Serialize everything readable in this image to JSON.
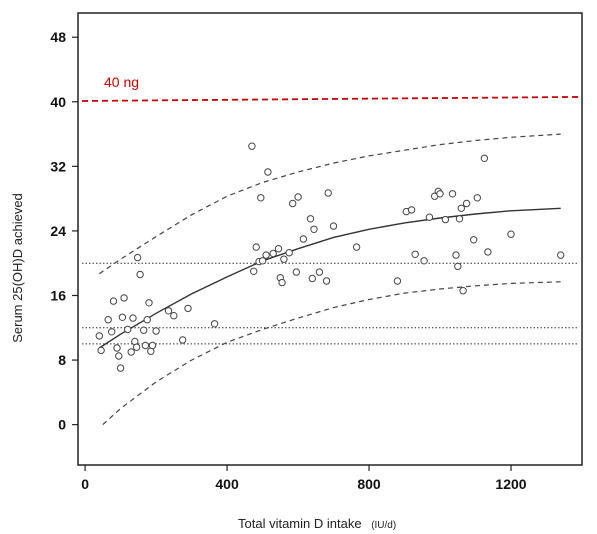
{
  "chart_data": {
    "type": "scatter",
    "title": "",
    "xlabel": "Total vitamin D intake",
    "xlabel_unit": "(IU/d)",
    "ylabel": "Serum 25(OH)D achieved",
    "xlim": [
      -20,
      1400
    ],
    "ylim": [
      -5,
      51
    ],
    "x_ticks": [
      0,
      400,
      800,
      1200
    ],
    "y_ticks": [
      0,
      8,
      16,
      24,
      32,
      40,
      48
    ],
    "grid": false,
    "reference_lines": [
      {
        "name": "40 ng",
        "y": 40.1,
        "y_end": 40.6,
        "color": "#cc0000",
        "style": "dashed"
      },
      {
        "y": 20,
        "color": "#333333",
        "style": "dotted"
      },
      {
        "y": 12,
        "color": "#333333",
        "style": "dotted"
      },
      {
        "y": 10,
        "color": "#333333",
        "style": "dotted"
      }
    ],
    "fit_curve": {
      "style": "solid",
      "x": [
        40,
        100,
        200,
        300,
        400,
        500,
        600,
        700,
        800,
        900,
        1000,
        1100,
        1200,
        1340
      ],
      "y": [
        9.5,
        11.2,
        13.8,
        16.2,
        18.3,
        20.3,
        21.8,
        23.2,
        24.2,
        25.0,
        25.6,
        26.1,
        26.5,
        26.8
      ]
    },
    "band_upper": {
      "style": "dashed",
      "x": [
        40,
        100,
        200,
        300,
        400,
        500,
        600,
        700,
        800,
        900,
        1000,
        1100,
        1200,
        1340
      ],
      "y": [
        18.7,
        20.5,
        23.3,
        26.0,
        28.3,
        30.0,
        31.3,
        32.4,
        33.3,
        34.0,
        34.7,
        35.2,
        35.6,
        36.0
      ]
    },
    "band_lower": {
      "style": "dashed",
      "x": [
        50,
        100,
        200,
        300,
        400,
        500,
        600,
        700,
        800,
        900,
        1000,
        1100,
        1200,
        1340
      ],
      "y": [
        0,
        2.0,
        5.3,
        8.0,
        10.2,
        11.8,
        13.2,
        14.5,
        15.5,
        16.3,
        16.8,
        17.2,
        17.5,
        17.7
      ]
    },
    "points": [
      {
        "x": 40,
        "y": 11
      },
      {
        "x": 45,
        "y": 9.2
      },
      {
        "x": 65,
        "y": 13
      },
      {
        "x": 75,
        "y": 11.5
      },
      {
        "x": 80,
        "y": 15.3
      },
      {
        "x": 90,
        "y": 9.5
      },
      {
        "x": 95,
        "y": 8.5
      },
      {
        "x": 100,
        "y": 7
      },
      {
        "x": 105,
        "y": 13.3
      },
      {
        "x": 110,
        "y": 15.7
      },
      {
        "x": 120,
        "y": 11.8
      },
      {
        "x": 130,
        "y": 9
      },
      {
        "x": 135,
        "y": 13.2
      },
      {
        "x": 140,
        "y": 10.3
      },
      {
        "x": 145,
        "y": 9.6
      },
      {
        "x": 148,
        "y": 20.7
      },
      {
        "x": 155,
        "y": 18.6
      },
      {
        "x": 165,
        "y": 11.7
      },
      {
        "x": 170,
        "y": 9.8
      },
      {
        "x": 175,
        "y": 13
      },
      {
        "x": 180,
        "y": 15.1
      },
      {
        "x": 185,
        "y": 9.1
      },
      {
        "x": 190,
        "y": 9.8
      },
      {
        "x": 200,
        "y": 11.6
      },
      {
        "x": 235,
        "y": 14.1
      },
      {
        "x": 250,
        "y": 13.5
      },
      {
        "x": 275,
        "y": 10.5
      },
      {
        "x": 290,
        "y": 14.4
      },
      {
        "x": 365,
        "y": 12.5
      },
      {
        "x": 470,
        "y": 34.5
      },
      {
        "x": 475,
        "y": 19
      },
      {
        "x": 482,
        "y": 22
      },
      {
        "x": 490,
        "y": 20.2
      },
      {
        "x": 495,
        "y": 28.1
      },
      {
        "x": 500,
        "y": 20.3
      },
      {
        "x": 510,
        "y": 21
      },
      {
        "x": 515,
        "y": 31.3
      },
      {
        "x": 530,
        "y": 21.2
      },
      {
        "x": 545,
        "y": 21.8
      },
      {
        "x": 550,
        "y": 18.2
      },
      {
        "x": 555,
        "y": 17.6
      },
      {
        "x": 560,
        "y": 20.5
      },
      {
        "x": 575,
        "y": 21.3
      },
      {
        "x": 585,
        "y": 27.4
      },
      {
        "x": 595,
        "y": 18.9
      },
      {
        "x": 600,
        "y": 28.2
      },
      {
        "x": 615,
        "y": 23
      },
      {
        "x": 635,
        "y": 25.5
      },
      {
        "x": 640,
        "y": 18.1
      },
      {
        "x": 645,
        "y": 24.2
      },
      {
        "x": 660,
        "y": 18.9
      },
      {
        "x": 680,
        "y": 17.8
      },
      {
        "x": 685,
        "y": 28.7
      },
      {
        "x": 700,
        "y": 24.6
      },
      {
        "x": 765,
        "y": 22
      },
      {
        "x": 880,
        "y": 17.8
      },
      {
        "x": 905,
        "y": 26.4
      },
      {
        "x": 920,
        "y": 26.6
      },
      {
        "x": 930,
        "y": 21.1
      },
      {
        "x": 955,
        "y": 20.3
      },
      {
        "x": 970,
        "y": 25.7
      },
      {
        "x": 985,
        "y": 28.3
      },
      {
        "x": 995,
        "y": 28.9
      },
      {
        "x": 1000,
        "y": 28.6
      },
      {
        "x": 1015,
        "y": 25.4
      },
      {
        "x": 1035,
        "y": 28.6
      },
      {
        "x": 1045,
        "y": 21
      },
      {
        "x": 1050,
        "y": 19.6
      },
      {
        "x": 1055,
        "y": 25.5
      },
      {
        "x": 1060,
        "y": 26.8
      },
      {
        "x": 1065,
        "y": 16.6
      },
      {
        "x": 1075,
        "y": 27.4
      },
      {
        "x": 1095,
        "y": 22.9
      },
      {
        "x": 1105,
        "y": 28.1
      },
      {
        "x": 1125,
        "y": 33
      },
      {
        "x": 1135,
        "y": 21.4
      },
      {
        "x": 1200,
        "y": 23.6
      },
      {
        "x": 1340,
        "y": 21
      }
    ]
  }
}
